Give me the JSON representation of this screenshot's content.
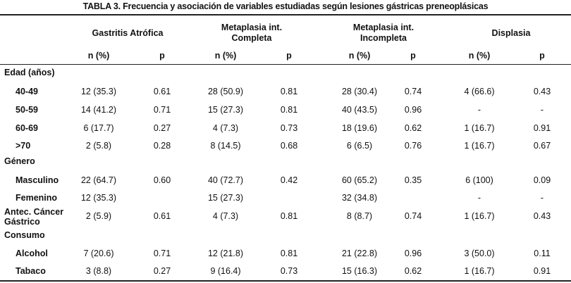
{
  "title": "TABLA 3. Frecuencia y asociación de variables estudiadas según lesiones gástricas preneoplásicas",
  "groups": [
    {
      "line1": "Gastritis Atrófica",
      "line2": ""
    },
    {
      "line1": "Metaplasia int.",
      "line2": "Completa"
    },
    {
      "line1": "Metaplasia int.",
      "line2": "Incompleta"
    },
    {
      "line1": "Displasia",
      "line2": ""
    }
  ],
  "subheaders": [
    "n (%)",
    "p",
    "n (%)",
    "p",
    "n (%)",
    "p",
    "n (%)",
    "p"
  ],
  "rows": [
    {
      "label": [
        "Edad (años)"
      ],
      "kind": "section",
      "cells": []
    },
    {
      "label": [
        "40-49"
      ],
      "kind": "item",
      "cells": [
        "12 (35.3)",
        "0.61",
        "28 (50.9)",
        "0.81",
        "28 (30.4)",
        "0.74",
        "4 (66.6)",
        "0.43"
      ]
    },
    {
      "label": [
        "50-59"
      ],
      "kind": "item",
      "cells": [
        "14 (41.2)",
        "0.71",
        "15 (27.3)",
        "0.81",
        "40 (43.5)",
        "0.96",
        "-",
        "-"
      ]
    },
    {
      "label": [
        "60-69"
      ],
      "kind": "item",
      "cells": [
        "6 (17.7)",
        "0.27",
        "4 (7.3)",
        "0.73",
        "18 (19.6)",
        "0.62",
        "1 (16.7)",
        "0.91"
      ]
    },
    {
      "label": [
        ">70"
      ],
      "kind": "item",
      "cells": [
        "2 (5.8)",
        "0.28",
        "8 (14.5)",
        "0.68",
        "6 (6.5)",
        "0.76",
        "1 (16.7)",
        "0.67"
      ]
    },
    {
      "label": [
        "Género"
      ],
      "kind": "section",
      "cells": []
    },
    {
      "label": [
        "Masculino"
      ],
      "kind": "item",
      "cells": [
        "22 (64.7)",
        "0.60",
        "40 (72.7)",
        "0.42",
        "60 (65.2)",
        "0.35",
        "6 (100)",
        "0.09"
      ]
    },
    {
      "label": [
        "Femenino"
      ],
      "kind": "item",
      "cells": [
        "12 (35.3)",
        "",
        "15 (27.3)",
        "",
        "32 (34.8)",
        "",
        "-",
        "-"
      ]
    },
    {
      "label": [
        "Antec. Cáncer",
        "Gástrico"
      ],
      "kind": "section",
      "cells": [
        "2 (5.9)",
        "0.61",
        "4 (7.3)",
        "0.81",
        "8 (8.7)",
        "0.74",
        "1 (16.7)",
        "0.43"
      ]
    },
    {
      "label": [
        "Consumo"
      ],
      "kind": "section",
      "cells": []
    },
    {
      "label": [
        "Alcohol"
      ],
      "kind": "item",
      "cells": [
        "7 (20.6)",
        "0.71",
        "12 (21.8)",
        "0.81",
        "21 (22.8)",
        "0.96",
        "3 (50.0)",
        "0.11"
      ]
    },
    {
      "label": [
        "Tabaco"
      ],
      "kind": "item",
      "cells": [
        "3 (8.8)",
        "0.27",
        "9 (16.4)",
        "0.73",
        "15 (16.3)",
        "0.62",
        "1 (16.7)",
        "0.91"
      ]
    }
  ]
}
